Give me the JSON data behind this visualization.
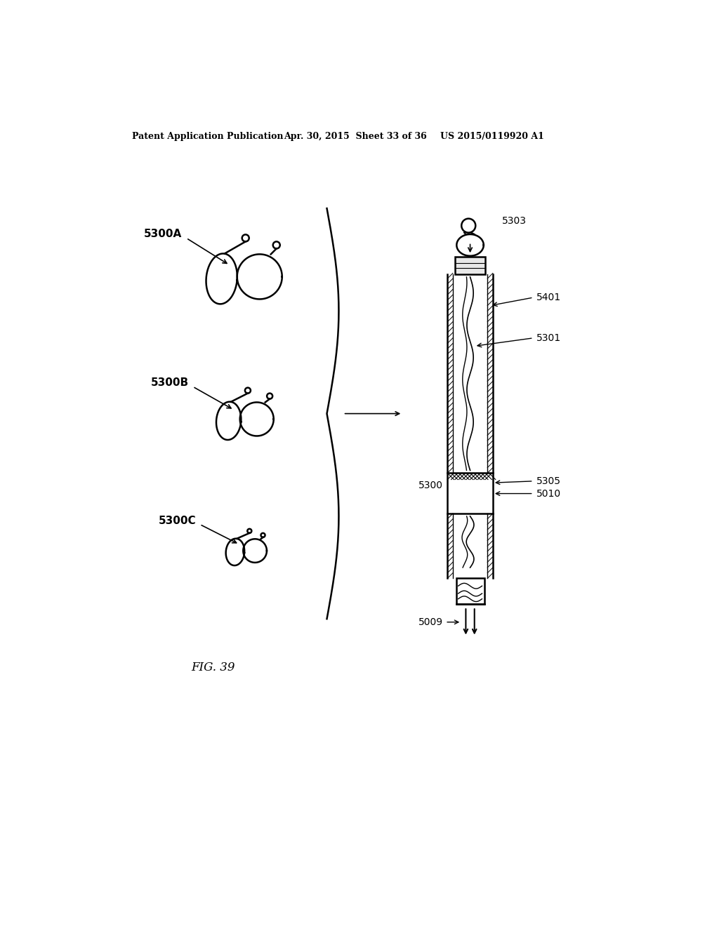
{
  "title": "FIG. 39",
  "header_left": "Patent Application Publication",
  "header_mid": "Apr. 30, 2015  Sheet 33 of 36",
  "header_right": "US 2015/0119920 A1",
  "background_color": "#ffffff",
  "line_color": "#000000"
}
